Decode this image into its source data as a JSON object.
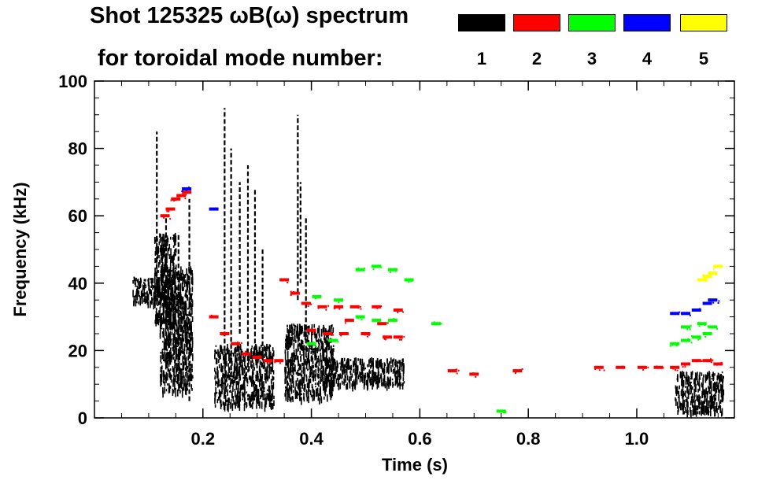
{
  "chart_data": {
    "type": "scatter",
    "title_line1": "Shot 125325 ωB(ω) spectrum",
    "title_line2": "for toroidal mode number:",
    "xlabel": "Time (s)",
    "ylabel": "Frequency (kHz)",
    "xlim": [
      0.0,
      1.18
    ],
    "ylim": [
      0,
      100
    ],
    "x_ticks": [
      {
        "value": 0.2,
        "label": "0.2"
      },
      {
        "value": 0.4,
        "label": "0.4"
      },
      {
        "value": 0.6,
        "label": "0.6"
      },
      {
        "value": 0.8,
        "label": "0.8"
      },
      {
        "value": 1.0,
        "label": "1.0"
      }
    ],
    "y_ticks": [
      {
        "value": 0,
        "label": "0"
      },
      {
        "value": 20,
        "label": "20"
      },
      {
        "value": 40,
        "label": "40"
      },
      {
        "value": 60,
        "label": "60"
      },
      {
        "value": 80,
        "label": "80"
      },
      {
        "value": 100,
        "label": "100"
      }
    ],
    "legend": [
      {
        "mode": "1",
        "color": "#000000"
      },
      {
        "mode": "2",
        "color": "#ff0000"
      },
      {
        "mode": "3",
        "color": "#00ff00"
      },
      {
        "mode": "4",
        "color": "#0000ff"
      },
      {
        "mode": "5",
        "color": "#ffff00"
      }
    ],
    "series": [
      {
        "name": "n=1",
        "color": "#000000",
        "bursts": [
          {
            "t": [
              0.07,
              0.12
            ],
            "f": [
              34,
              42
            ]
          },
          {
            "t": [
              0.11,
              0.15
            ],
            "f": [
              28,
              55
            ]
          },
          {
            "t": [
              0.12,
              0.18
            ],
            "f": [
              8,
              45
            ]
          },
          {
            "t": [
              0.22,
              0.33
            ],
            "f": [
              4,
              22
            ]
          },
          {
            "t": [
              0.35,
              0.44
            ],
            "f": [
              6,
              28
            ]
          },
          {
            "t": [
              0.42,
              0.57
            ],
            "f": [
              10,
              18
            ]
          },
          {
            "t": [
              1.07,
              1.16
            ],
            "f": [
              2,
              14
            ]
          }
        ],
        "spikes": [
          {
            "t": 0.115,
            "f": [
              40,
              85
            ]
          },
          {
            "t": 0.132,
            "f": [
              20,
              60
            ]
          },
          {
            "t": 0.155,
            "f": [
              15,
              55
            ]
          },
          {
            "t": 0.175,
            "f": [
              5,
              65
            ]
          },
          {
            "t": 0.24,
            "f": [
              20,
              92
            ]
          },
          {
            "t": 0.252,
            "f": [
              10,
              80
            ]
          },
          {
            "t": 0.268,
            "f": [
              25,
              70
            ]
          },
          {
            "t": 0.283,
            "f": [
              15,
              75
            ]
          },
          {
            "t": 0.296,
            "f": [
              20,
              68
            ]
          },
          {
            "t": 0.31,
            "f": [
              15,
              50
            ]
          },
          {
            "t": 0.375,
            "f": [
              35,
              90
            ]
          },
          {
            "t": 0.38,
            "f": [
              40,
              70
            ]
          },
          {
            "t": 0.39,
            "f": [
              20,
              60
            ]
          }
        ]
      },
      {
        "name": "n=2",
        "color": "#ff0000",
        "points": [
          [
            0.13,
            60
          ],
          [
            0.14,
            62
          ],
          [
            0.15,
            65
          ],
          [
            0.16,
            66
          ],
          [
            0.17,
            67
          ],
          [
            0.22,
            30
          ],
          [
            0.24,
            25
          ],
          [
            0.26,
            22
          ],
          [
            0.28,
            19
          ],
          [
            0.3,
            18
          ],
          [
            0.32,
            17
          ],
          [
            0.34,
            17
          ],
          [
            0.35,
            41
          ],
          [
            0.37,
            37
          ],
          [
            0.39,
            34
          ],
          [
            0.42,
            33
          ],
          [
            0.45,
            33
          ],
          [
            0.48,
            33
          ],
          [
            0.52,
            33
          ],
          [
            0.56,
            32
          ],
          [
            0.4,
            26
          ],
          [
            0.43,
            25
          ],
          [
            0.46,
            25
          ],
          [
            0.5,
            25
          ],
          [
            0.54,
            24
          ],
          [
            0.56,
            24
          ],
          [
            0.47,
            29
          ],
          [
            0.53,
            28
          ],
          [
            0.93,
            15
          ],
          [
            0.97,
            15
          ],
          [
            1.01,
            15
          ],
          [
            1.04,
            15
          ],
          [
            1.07,
            15
          ],
          [
            1.09,
            16
          ],
          [
            1.11,
            17
          ],
          [
            1.13,
            17
          ],
          [
            1.15,
            16
          ],
          [
            0.7,
            13
          ],
          [
            0.78,
            14
          ],
          [
            0.66,
            14
          ]
        ]
      },
      {
        "name": "n=3",
        "color": "#00ff00",
        "points": [
          [
            0.41,
            36
          ],
          [
            0.45,
            35
          ],
          [
            0.49,
            30
          ],
          [
            0.52,
            29
          ],
          [
            0.55,
            29
          ],
          [
            0.49,
            44
          ],
          [
            0.52,
            45
          ],
          [
            0.55,
            44
          ],
          [
            0.58,
            41
          ],
          [
            0.4,
            22
          ],
          [
            0.44,
            23
          ],
          [
            1.07,
            22
          ],
          [
            1.09,
            23
          ],
          [
            1.11,
            24
          ],
          [
            1.13,
            25
          ],
          [
            1.09,
            27
          ],
          [
            1.12,
            28
          ],
          [
            1.14,
            27
          ],
          [
            0.75,
            2
          ],
          [
            0.63,
            28
          ]
        ]
      },
      {
        "name": "n=4",
        "color": "#0000ff",
        "points": [
          [
            0.17,
            68
          ],
          [
            0.22,
            62
          ],
          [
            1.07,
            31
          ],
          [
            1.09,
            31
          ],
          [
            1.11,
            32
          ],
          [
            1.13,
            34
          ],
          [
            1.14,
            35
          ]
        ]
      },
      {
        "name": "n=5",
        "color": "#ffff00",
        "points": [
          [
            1.12,
            41
          ],
          [
            1.13,
            42
          ],
          [
            1.14,
            43
          ],
          [
            1.15,
            45
          ]
        ]
      }
    ]
  }
}
